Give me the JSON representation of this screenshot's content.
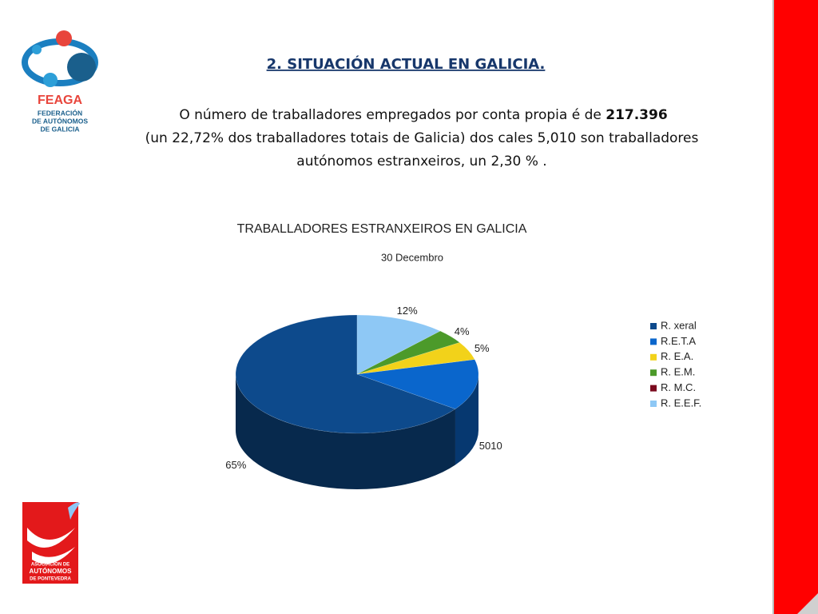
{
  "header": {
    "title": "2. SITUACIÓN ACTUAL EN GALICIA.",
    "text": {
      "line1": "O número de traballadores empregados por conta propia é de ",
      "line1_bold": "217.396",
      "line2": "(un 22,72% dos traballadores totais de Galicia) dos cales 5,010 son traballadores",
      "line3": "autónomos estranxeiros, un 2,30 % ."
    }
  },
  "logo_top": {
    "name": "FEAGA",
    "lines": [
      "FEDERACIÓN",
      "DE AUTÓNOMOS",
      "DE GALICIA"
    ]
  },
  "logo_bottom": {
    "lines": [
      "ASOCIACIÓN DE",
      "AUTÓNOMOS",
      "DE PONTEVEDRA"
    ]
  },
  "chart_data": {
    "type": "pie",
    "title": "TRABALLADORES ESTRANXEIROS EN GALICIA",
    "subtitle": "30 Decembro",
    "categories": [
      "R. xeral",
      "R.E.T.A",
      "R. E.A.",
      "R. E.M.",
      "R. M.C.",
      "R. E.E.F."
    ],
    "values": [
      65,
      14,
      5,
      4,
      0,
      12
    ],
    "value_labels": [
      "65%",
      null,
      "5%",
      "4%",
      null,
      "12%"
    ],
    "colors": [
      "#0d4a8c",
      "#0a66cc",
      "#f2d21a",
      "#4c9a2a",
      "#7a0a1e",
      "#8ec8f5"
    ],
    "annotations": [
      "5010"
    ],
    "legend": "right"
  }
}
